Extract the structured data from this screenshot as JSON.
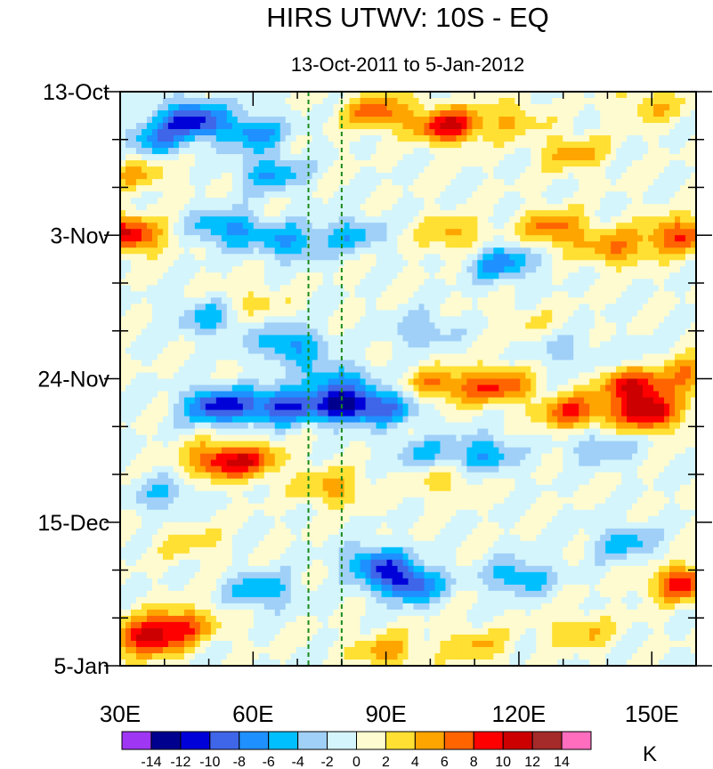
{
  "chart_data": {
    "type": "heatmap",
    "title": "HIRS UTWV: 10S - EQ",
    "subtitle": "13-Oct-2011 to 5-Jan-2012",
    "x_axis": {
      "range": [
        30,
        160
      ],
      "ticks": [
        {
          "value": 30,
          "label": "30E"
        },
        {
          "value": 60,
          "label": "60E"
        },
        {
          "value": 90,
          "label": "90E"
        },
        {
          "value": 120,
          "label": "120E"
        },
        {
          "value": 150,
          "label": "150E"
        }
      ],
      "minor_step": 10
    },
    "y_axis": {
      "range_days": [
        0,
        84
      ],
      "direction": "time increases downward",
      "ticks": [
        {
          "day": 0,
          "label": "13-Oct"
        },
        {
          "day": 21,
          "label": "3-Nov"
        },
        {
          "day": 42,
          "label": "24-Nov"
        },
        {
          "day": 63,
          "label": "15-Dec"
        },
        {
          "day": 84,
          "label": "5-Jan"
        }
      ],
      "minor_step_days": 7
    },
    "reference_lines": [
      {
        "longitude": 72.5,
        "style": "dashed",
        "color": "#1a8a1a"
      },
      {
        "longitude": 80,
        "style": "dashed",
        "color": "#1a8a1a"
      }
    ],
    "colorbar": {
      "units": "K",
      "levels": [
        -14,
        -12,
        -10,
        -8,
        -6,
        -4,
        -2,
        0,
        2,
        4,
        6,
        8,
        10,
        12,
        14
      ],
      "level_labels": [
        "-14",
        "-12",
        "-10",
        "-8",
        "-6",
        "-4",
        "-2",
        "0",
        "2",
        "4",
        "6",
        "8",
        "10",
        "12",
        "14"
      ],
      "colors": [
        "#9f36f4",
        "#00008f",
        "#0000d8",
        "#3f65e8",
        "#1e90ff",
        "#00bfff",
        "#a0d0f8",
        "#d4f5fc",
        "#fffbd0",
        "#ffe033",
        "#ffa500",
        "#ff6400",
        "#ff0000",
        "#cc0000",
        "#a52a2a",
        "#ff6dbf"
      ]
    },
    "anomaly_features": [
      {
        "lon": 46,
        "day": 4,
        "value": -11
      },
      {
        "lon": 38,
        "day": 7,
        "value": -6
      },
      {
        "lon": 60,
        "day": 6,
        "value": -7
      },
      {
        "lon": 64,
        "day": 12,
        "value": -6
      },
      {
        "lon": 54,
        "day": 20,
        "value": -7
      },
      {
        "lon": 68,
        "day": 22,
        "value": -6
      },
      {
        "lon": 82,
        "day": 21,
        "value": -5
      },
      {
        "lon": 50,
        "day": 33,
        "value": -5
      },
      {
        "lon": 68,
        "day": 37,
        "value": -7
      },
      {
        "lon": 52,
        "day": 46,
        "value": -11
      },
      {
        "lon": 66,
        "day": 46,
        "value": -10
      },
      {
        "lon": 80,
        "day": 46,
        "value": -11
      },
      {
        "lon": 90,
        "day": 46,
        "value": -7
      },
      {
        "lon": 78,
        "day": 42,
        "value": -6
      },
      {
        "lon": 112,
        "day": 53,
        "value": -6
      },
      {
        "lon": 98,
        "day": 53,
        "value": -4
      },
      {
        "lon": 40,
        "day": 59,
        "value": -4
      },
      {
        "lon": 88,
        "day": 69,
        "value": -8
      },
      {
        "lon": 95,
        "day": 72,
        "value": -10
      },
      {
        "lon": 62,
        "day": 73,
        "value": -6
      },
      {
        "lon": 120,
        "day": 71,
        "value": -6
      },
      {
        "lon": 144,
        "day": 66,
        "value": -5
      },
      {
        "lon": 116,
        "day": 25,
        "value": -7
      },
      {
        "lon": 98,
        "day": 35,
        "value": -4
      },
      {
        "lon": 130,
        "day": 38,
        "value": -3
      },
      {
        "lon": 150,
        "day": 40,
        "value": -3
      },
      {
        "lon": 138,
        "day": 52,
        "value": -4
      },
      {
        "lon": 104,
        "day": 5,
        "value": 10
      },
      {
        "lon": 88,
        "day": 3,
        "value": 7
      },
      {
        "lon": 118,
        "day": 4,
        "value": 4
      },
      {
        "lon": 150,
        "day": 2,
        "value": 4
      },
      {
        "lon": 132,
        "day": 9,
        "value": 5
      },
      {
        "lon": 32,
        "day": 21,
        "value": 10
      },
      {
        "lon": 105,
        "day": 21,
        "value": 5
      },
      {
        "lon": 128,
        "day": 20,
        "value": 7
      },
      {
        "lon": 156,
        "day": 21,
        "value": 8
      },
      {
        "lon": 142,
        "day": 23,
        "value": 6
      },
      {
        "lon": 115,
        "day": 43,
        "value": 8
      },
      {
        "lon": 102,
        "day": 43,
        "value": 6
      },
      {
        "lon": 146,
        "day": 43,
        "value": 10
      },
      {
        "lon": 132,
        "day": 47,
        "value": 8
      },
      {
        "lon": 149,
        "day": 47,
        "value": 11
      },
      {
        "lon": 157,
        "day": 41,
        "value": 7
      },
      {
        "lon": 52,
        "day": 54,
        "value": 8
      },
      {
        "lon": 60,
        "day": 54,
        "value": 6
      },
      {
        "lon": 78,
        "day": 58,
        "value": 5
      },
      {
        "lon": 102,
        "day": 57,
        "value": 3
      },
      {
        "lon": 157,
        "day": 72,
        "value": 9
      },
      {
        "lon": 36,
        "day": 80,
        "value": 10
      },
      {
        "lon": 44,
        "day": 78,
        "value": 7
      },
      {
        "lon": 90,
        "day": 82,
        "value": 5
      },
      {
        "lon": 110,
        "day": 81,
        "value": 4
      },
      {
        "lon": 134,
        "day": 79,
        "value": 4
      },
      {
        "lon": 34,
        "day": 12,
        "value": 4
      },
      {
        "lon": 60,
        "day": 31,
        "value": 3
      },
      {
        "lon": 46,
        "day": 66,
        "value": 3
      },
      {
        "lon": 122,
        "day": 34,
        "value": 2
      }
    ]
  }
}
